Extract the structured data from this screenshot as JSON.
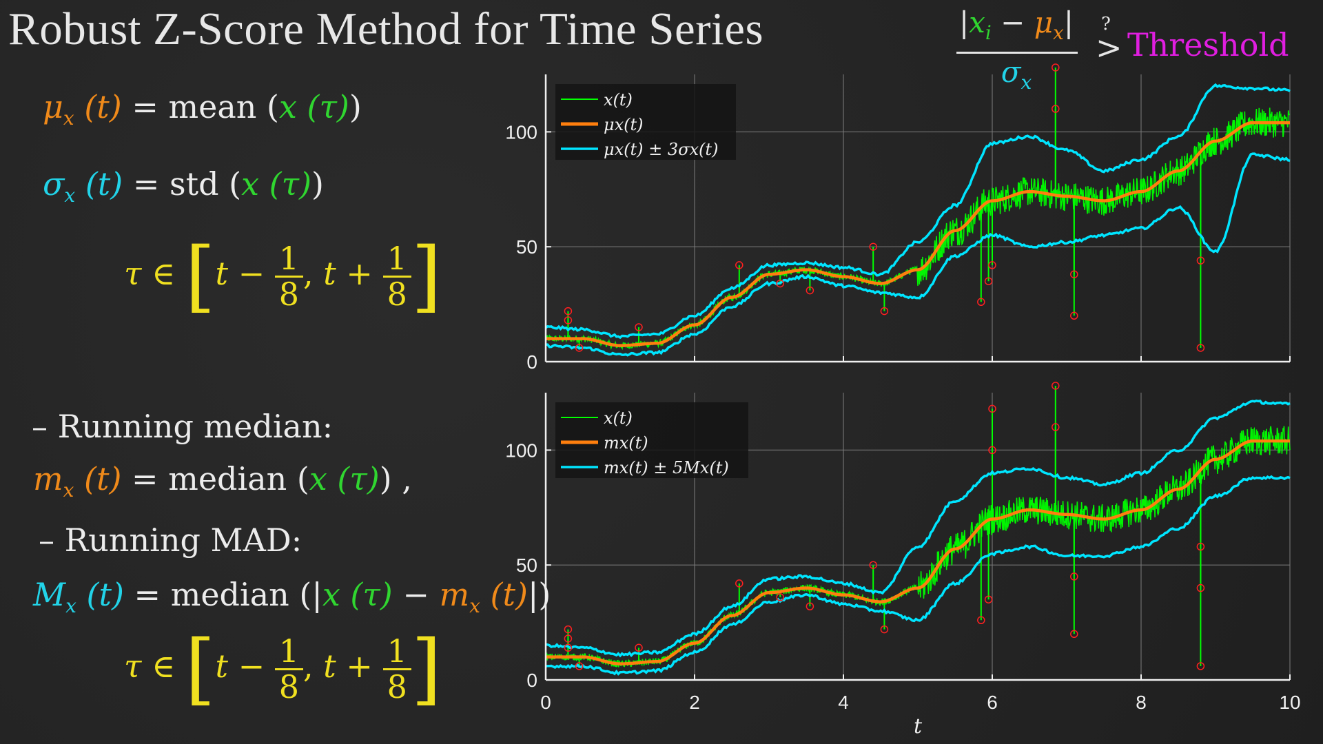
{
  "title": "Robust Z-Score Method for Time Series",
  "threshold_formula": {
    "numerator": "|x_i − μ_x|",
    "denominator": "σ_x",
    "comparator": "?",
    "label": "Threshold"
  },
  "equations": {
    "mu": "μx(t) = mean(x(τ))",
    "sigma": "σx(t) = std(x(τ))",
    "tau_window": "τ ∈ [t − 1/8, t + 1/8]",
    "running_median_label": "– Running median:",
    "median": "mx(t) = median(x(τ)),",
    "running_mad_label": "– Running MAD:",
    "mad": "Mx(t) = median(|x(τ) − mx(t)|)",
    "tau_window_2": "τ ∈ [t − 1/8, t + 1/8]"
  },
  "colors": {
    "signal": "#00ff00",
    "center": "#ff7f0e",
    "band": "#00e5ff",
    "outlier": "#ff2020",
    "threshold": "#e01ee0",
    "window": "#f0e020"
  },
  "chart_data": [
    {
      "type": "line",
      "xlim": [
        0,
        10
      ],
      "ylim": [
        0,
        125
      ],
      "yticks": [
        0,
        50,
        100
      ],
      "xticks": [
        0,
        2,
        4,
        6,
        8,
        10
      ],
      "xlabel": "",
      "ylabel": "",
      "grid": true,
      "legend_position": "top-left",
      "legend": [
        "x(t)",
        "μx(t)",
        "μx(t) ± 3σx(t)"
      ],
      "series": [
        {
          "name": "μx(t)",
          "x": [
            0,
            0.5,
            1,
            1.5,
            2,
            2.5,
            3,
            3.5,
            4,
            4.5,
            5,
            5.5,
            6,
            6.5,
            7,
            7.5,
            8,
            8.5,
            9,
            9.5,
            10
          ],
          "values": [
            10,
            10,
            7,
            8,
            16,
            28,
            38,
            40,
            37,
            34,
            40,
            57,
            70,
            74,
            72,
            70,
            74,
            83,
            96,
            104,
            104
          ]
        },
        {
          "name": "μx(t) + 3σx(t)",
          "x": [
            0,
            0.5,
            1,
            1.5,
            2,
            2.5,
            3,
            3.5,
            4,
            4.5,
            5,
            5.5,
            6,
            6.5,
            7,
            7.5,
            8,
            8.5,
            9,
            9.5,
            10
          ],
          "values": [
            15,
            14,
            11,
            12,
            20,
            32,
            42,
            43,
            41,
            38,
            52,
            68,
            95,
            98,
            92,
            83,
            88,
            98,
            120,
            119,
            118
          ]
        },
        {
          "name": "μx(t) − 3σx(t)",
          "x": [
            0,
            0.5,
            1,
            1.5,
            2,
            2.5,
            3,
            3.5,
            4,
            4.5,
            5,
            5.5,
            6,
            6.5,
            7,
            7.5,
            8,
            8.5,
            9,
            9.5,
            10
          ],
          "values": [
            7,
            6,
            3,
            4,
            12,
            24,
            34,
            37,
            33,
            30,
            28,
            46,
            55,
            50,
            52,
            55,
            58,
            67,
            48,
            90,
            88
          ]
        }
      ],
      "outliers_x": [
        0.3,
        0.3,
        0.45,
        1.25,
        2.6,
        3.15,
        3.55,
        4.4,
        4.55,
        5.85,
        5.95,
        6.0,
        6.85,
        6.85,
        7.1,
        7.1,
        8.8,
        8.8
      ],
      "outliers_y": [
        22,
        18,
        6,
        15,
        42,
        34,
        31,
        50,
        22,
        26,
        35,
        42,
        128,
        110,
        38,
        20,
        44,
        6
      ]
    },
    {
      "type": "line",
      "xlim": [
        0,
        10
      ],
      "ylim": [
        0,
        125
      ],
      "yticks": [
        0,
        50,
        100
      ],
      "xticks": [
        0,
        2,
        4,
        6,
        8,
        10
      ],
      "xlabel": "t",
      "ylabel": "",
      "grid": true,
      "legend_position": "top-left",
      "legend": [
        "x(t)",
        "mx(t)",
        "mx(t) ± 5Mx(t)"
      ],
      "series": [
        {
          "name": "mx(t)",
          "x": [
            0,
            0.5,
            1,
            1.5,
            2,
            2.5,
            3,
            3.5,
            4,
            4.5,
            5,
            5.5,
            6,
            6.5,
            7,
            7.5,
            8,
            8.5,
            9,
            9.5,
            10
          ],
          "values": [
            10,
            10,
            7,
            8,
            16,
            28,
            38,
            40,
            37,
            34,
            40,
            57,
            70,
            74,
            72,
            70,
            74,
            83,
            96,
            104,
            104
          ]
        },
        {
          "name": "mx(t) + 5Mx(t)",
          "x": [
            0,
            0.5,
            1,
            1.5,
            2,
            2.5,
            3,
            3.5,
            4,
            4.5,
            5,
            5.5,
            6,
            6.5,
            7,
            7.5,
            8,
            8.5,
            9,
            9.5,
            10
          ],
          "values": [
            15,
            14,
            11,
            12,
            20,
            32,
            44,
            45,
            42,
            38,
            58,
            78,
            90,
            92,
            88,
            85,
            90,
            100,
            114,
            121,
            120
          ]
        },
        {
          "name": "mx(t) − 5Mx(t)",
          "x": [
            0,
            0.5,
            1,
            1.5,
            2,
            2.5,
            3,
            3.5,
            4,
            4.5,
            5,
            5.5,
            6,
            6.5,
            7,
            7.5,
            8,
            8.5,
            9,
            9.5,
            10
          ],
          "values": [
            6,
            6,
            3,
            4,
            12,
            24,
            34,
            37,
            33,
            30,
            26,
            42,
            55,
            58,
            54,
            54,
            58,
            66,
            80,
            88,
            88
          ]
        }
      ],
      "outliers_x": [
        0.3,
        0.3,
        0.3,
        0.45,
        1.25,
        2.6,
        3.15,
        3.55,
        4.4,
        4.55,
        5.85,
        5.95,
        6.0,
        6.0,
        6.85,
        6.85,
        7.1,
        7.1,
        8.8,
        8.8,
        8.8
      ],
      "outliers_y": [
        22,
        18,
        14,
        6,
        14,
        42,
        36,
        32,
        50,
        22,
        26,
        35,
        118,
        100,
        128,
        110,
        45,
        20,
        58,
        40,
        6
      ]
    }
  ]
}
